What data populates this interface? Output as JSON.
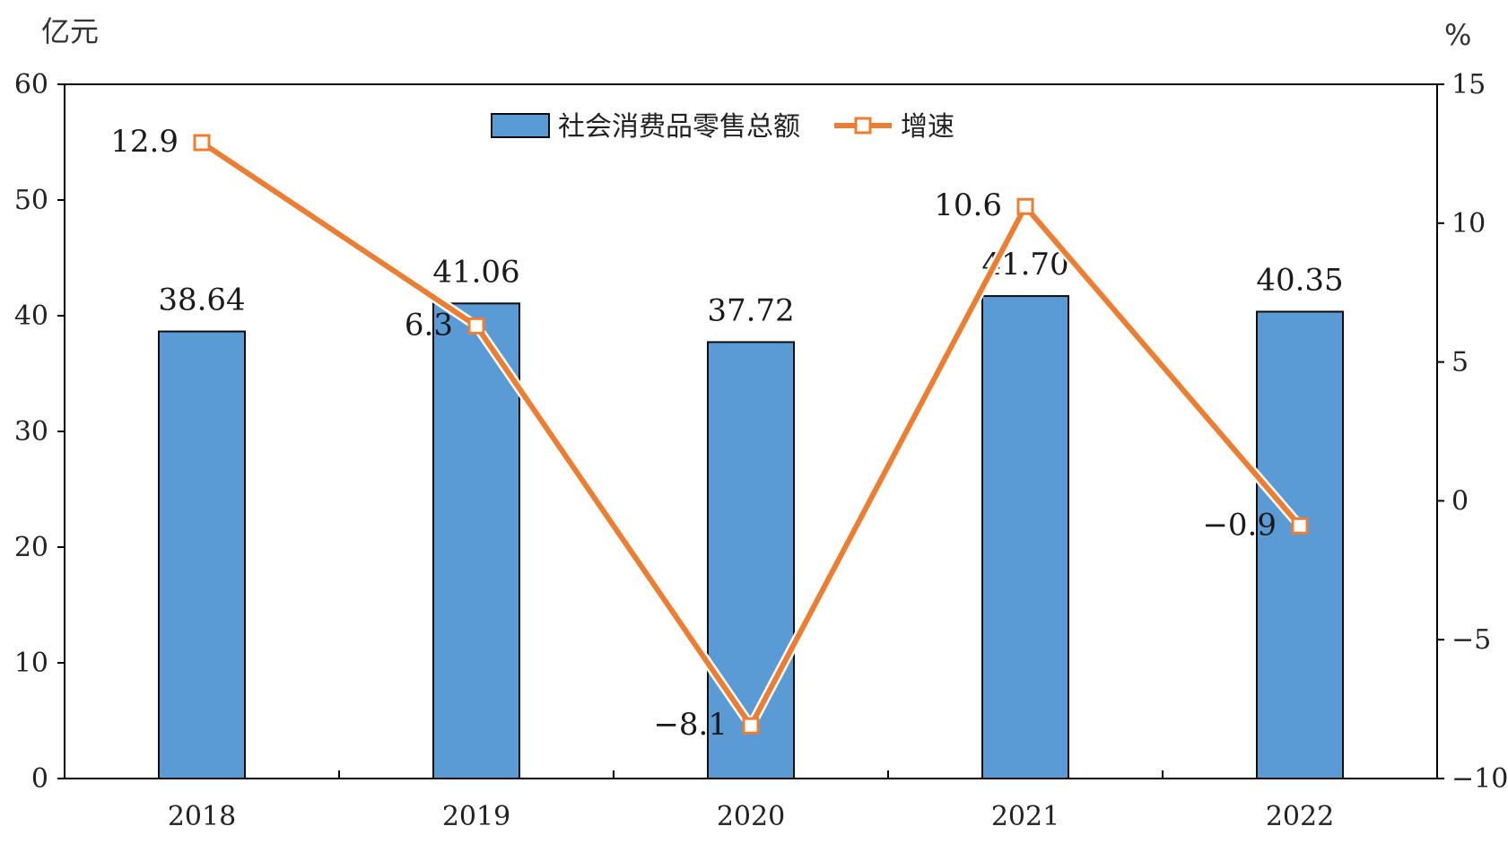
{
  "chart_data": {
    "type": "bar",
    "categories": [
      "2018",
      "2019",
      "2020",
      "2021",
      "2022"
    ],
    "series": [
      {
        "name": "社会消费品零售总额",
        "type": "bar",
        "axis": "left",
        "values": [
          38.64,
          41.06,
          37.72,
          41.7,
          40.35
        ],
        "labels": [
          "38.64",
          "41.06",
          "37.72",
          "41.70",
          "40.35"
        ],
        "color": "#5B9BD5"
      },
      {
        "name": "增速",
        "type": "line",
        "axis": "right",
        "values": [
          12.9,
          6.3,
          -8.1,
          10.6,
          -0.9
        ],
        "labels": [
          "12.9",
          "6.3",
          "-8.1",
          "10.6",
          "-0.9"
        ],
        "color": "#ED7D31"
      }
    ],
    "y_left": {
      "unit": "亿元",
      "ylim": [
        0,
        60
      ],
      "ticks": [
        "0",
        "10",
        "20",
        "30",
        "40",
        "50",
        "60"
      ]
    },
    "y_right": {
      "unit": "%",
      "ylim": [
        -10,
        15
      ],
      "ticks": [
        "-10",
        "-5",
        "0",
        "5",
        "10",
        "15"
      ]
    },
    "grid": false,
    "legend_position": "top-center"
  }
}
